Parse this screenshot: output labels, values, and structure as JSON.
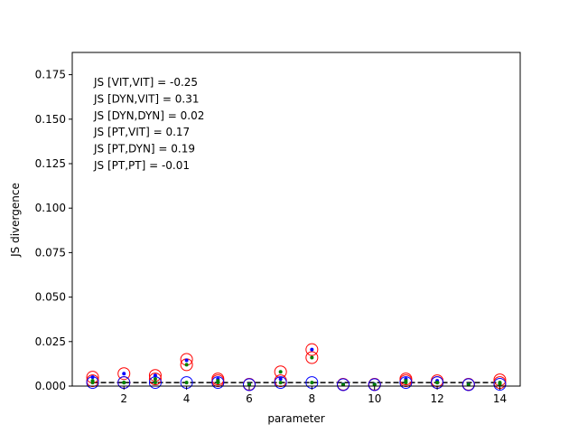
{
  "chart_data": {
    "type": "scatter",
    "title": "",
    "xlabel": "parameter",
    "ylabel": "JS divergence",
    "xlim": [
      0.35,
      14.65
    ],
    "ylim": [
      0.0,
      0.1875
    ],
    "xticks": [
      2,
      4,
      6,
      8,
      10,
      12,
      14
    ],
    "xtick_labels": [
      "2",
      "4",
      "6",
      "8",
      "10",
      "12",
      "14"
    ],
    "yticks": [
      0.0,
      0.025,
      0.05,
      0.075,
      0.1,
      0.125,
      0.15,
      0.175
    ],
    "ytick_labels": [
      "0.000",
      "0.025",
      "0.050",
      "0.075",
      "0.100",
      "0.125",
      "0.150",
      "0.175"
    ],
    "grid": false,
    "annotations": [
      "JS [VIT,VIT] = -0.25",
      "JS [DYN,VIT] = 0.31",
      "JS [DYN,DYN] = 0.02",
      "JS [PT,VIT] = 0.17",
      "JS [PT,DYN] = 0.19",
      "JS [PT,PT] = -0.01"
    ],
    "reference_line": {
      "y": 0.002,
      "style": "dashed",
      "color": "#000000"
    },
    "x": [
      1,
      2,
      3,
      4,
      5,
      6,
      7,
      8,
      9,
      10,
      11,
      12,
      13,
      14
    ],
    "series": [
      {
        "marker": "open-circle",
        "color": "#ff0000",
        "values": [
          0.005,
          0.007,
          0.006,
          0.015,
          0.004,
          0.001,
          0.008,
          0.0205,
          0.001,
          0.001,
          0.004,
          0.003,
          0.001,
          0.0035
        ]
      },
      {
        "marker": "open-circle",
        "color": "#ff0000",
        "values": [
          0.003,
          0.002,
          0.004,
          0.012,
          0.003,
          0.0008,
          0.003,
          0.016,
          0.0008,
          0.0008,
          0.003,
          0.002,
          0.0008,
          0.002
        ]
      },
      {
        "marker": "open-circle",
        "color": "#0000ff",
        "values": [
          0.002,
          0.002,
          0.002,
          0.002,
          0.002,
          0.0008,
          0.002,
          0.002,
          0.0008,
          0.0008,
          0.002,
          0.002,
          0.0008,
          0.001
        ]
      },
      {
        "marker": "dot",
        "color": "#0000ff",
        "values": [
          0.005,
          0.007,
          0.006,
          0.0145,
          0.004,
          0.001,
          0.004,
          0.0205,
          0.001,
          0.001,
          0.004,
          0.003,
          0.001,
          0.0015
        ]
      },
      {
        "marker": "dot",
        "color": "#008000",
        "values": [
          0.003,
          0.002,
          0.004,
          0.012,
          0.003,
          0.0008,
          0.008,
          0.016,
          0.0008,
          0.0008,
          0.003,
          0.002,
          0.0008,
          0.002
        ]
      },
      {
        "marker": "dot",
        "color": "#008000",
        "values": [
          0.002,
          0.002,
          0.002,
          0.002,
          0.002,
          0.0008,
          0.002,
          0.002,
          0.0008,
          0.0008,
          0.002,
          0.002,
          0.0008,
          0.001
        ]
      }
    ]
  }
}
